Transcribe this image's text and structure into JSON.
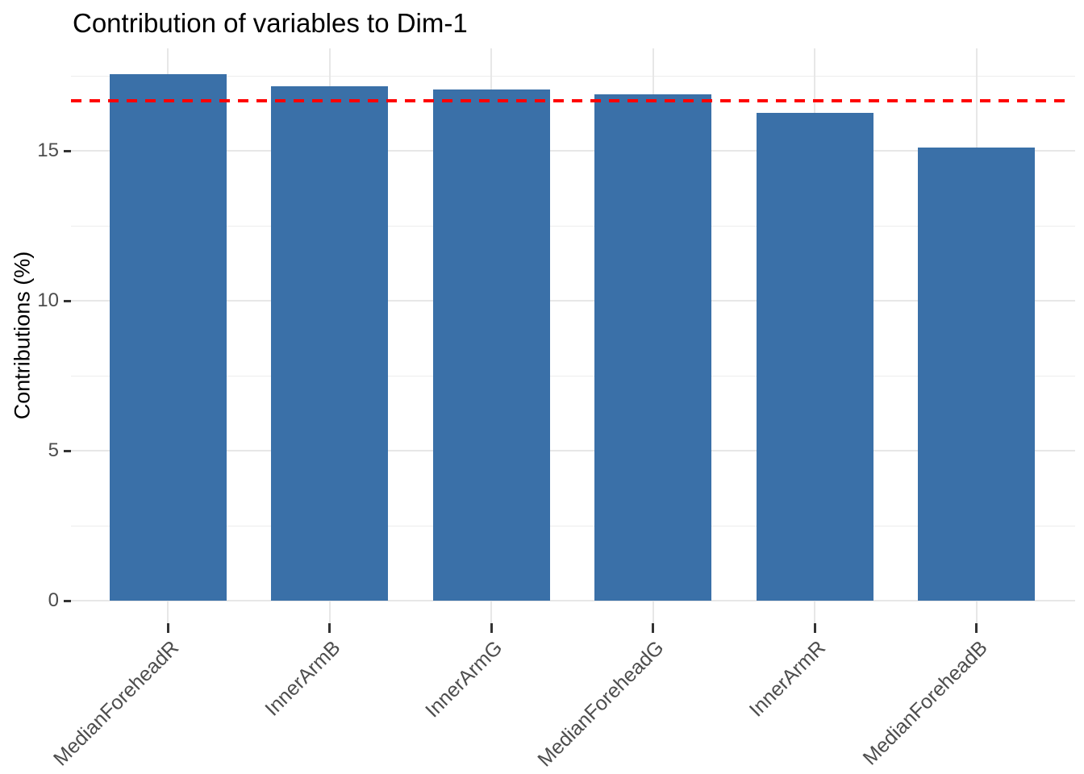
{
  "chart_data": {
    "type": "bar",
    "title": "Contribution of variables to Dim-1",
    "xlabel": "",
    "ylabel": "Contributions (%)",
    "categories": [
      "MedianForeheadR",
      "InnerArmB",
      "InnerArmG",
      "MedianForeheadG",
      "InnerArmR",
      "MedianForeheadB"
    ],
    "values": [
      17.55,
      17.15,
      17.05,
      16.87,
      16.26,
      15.12
    ],
    "y_ticks": [
      0,
      5,
      10,
      15
    ],
    "y_minor_ticks": [
      2.5,
      7.5,
      12.5,
      17.5
    ],
    "ylim": [
      -0.9,
      18.45
    ],
    "reference_line": {
      "value": 16.67,
      "color": "#ff0000",
      "style": "dashed"
    },
    "bar_color": "#3a70a8",
    "grid": "horizontal major+minor, vertical major per category; light gray on white",
    "legend": "none",
    "axis_text_color": "#4d4d4d",
    "title_color": "#000000"
  }
}
